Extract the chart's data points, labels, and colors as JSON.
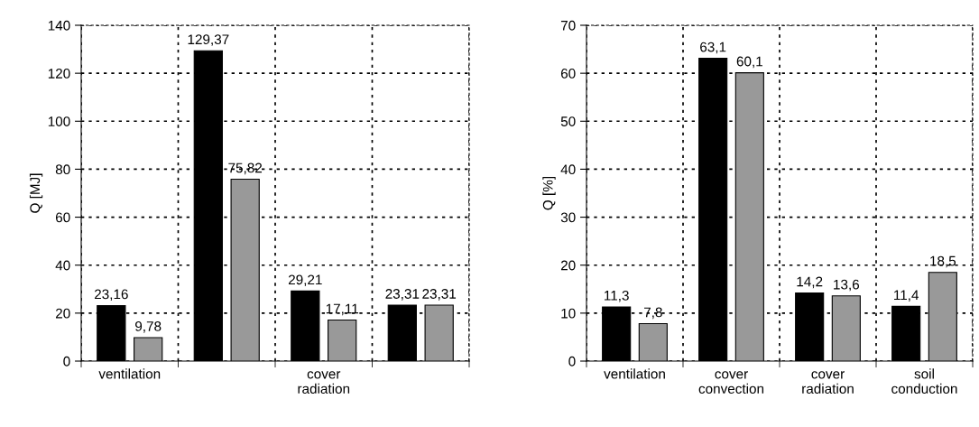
{
  "chart_data": [
    {
      "type": "bar",
      "ylabel": "Q [MJ]",
      "categories": [
        "ventilation",
        null,
        "cover\nradiation",
        null
      ],
      "ylim": [
        0,
        140
      ],
      "yticks": [
        0,
        20,
        40,
        60,
        80,
        100,
        120,
        140
      ],
      "grid": true,
      "series": [
        {
          "color": "#000000",
          "values": [
            23.16,
            129.37,
            29.21,
            23.31
          ],
          "value_labels": [
            "23,16",
            "129,37",
            "29,21",
            "23,31"
          ]
        },
        {
          "color": "#999999",
          "values": [
            9.78,
            75.82,
            17.11,
            23.31
          ],
          "value_labels": [
            "9,78",
            "75,82",
            "17,11",
            "23,31"
          ]
        }
      ]
    },
    {
      "type": "bar",
      "ylabel": "Q [%]",
      "categories": [
        "ventilation",
        "cover\nconvection",
        "cover\nradiation",
        "soil\nconduction"
      ],
      "ylim": [
        0,
        70
      ],
      "yticks": [
        0,
        10,
        20,
        30,
        40,
        50,
        60,
        70
      ],
      "grid": true,
      "series": [
        {
          "color": "#000000",
          "values": [
            11.3,
            63.1,
            14.2,
            11.4
          ],
          "value_labels": [
            "11,3",
            "63,1",
            "14,2",
            "11,4"
          ]
        },
        {
          "color": "#999999",
          "values": [
            7.8,
            60.1,
            13.6,
            18.5
          ],
          "value_labels": [
            "7,8",
            "60,1",
            "13,6",
            "18,5"
          ]
        }
      ]
    }
  ]
}
